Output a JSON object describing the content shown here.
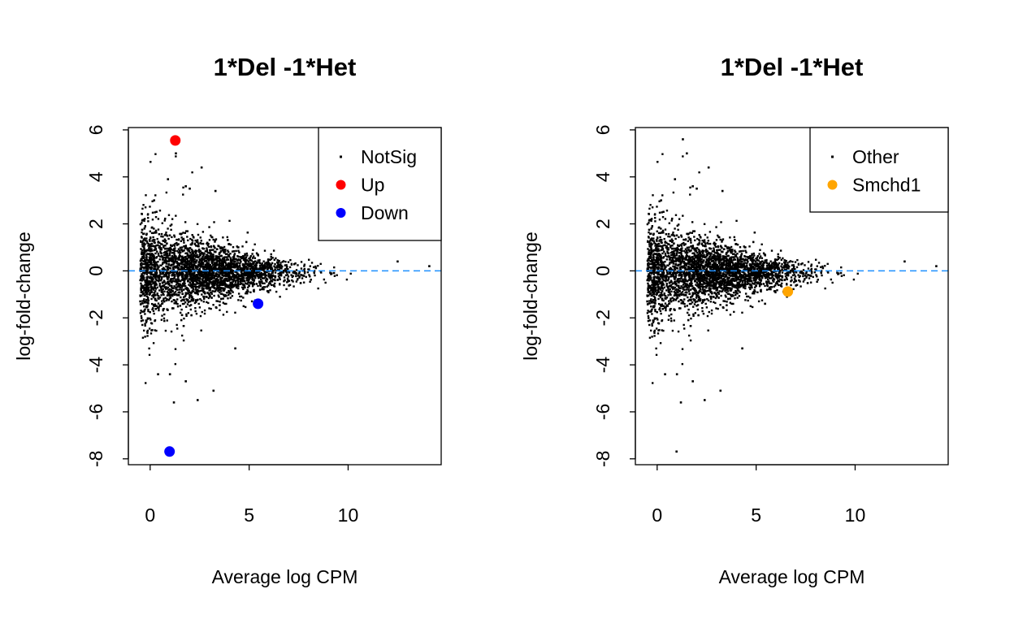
{
  "chart_data": [
    {
      "type": "scatter",
      "title": "1*Del -1*Het",
      "xlabel": "Average log CPM",
      "ylabel": "log-fold-change",
      "xlim": [
        -1.1,
        14.7
      ],
      "ylim": [
        -8.25,
        6.1
      ],
      "xticks": [
        "0",
        "5",
        "10"
      ],
      "xtick_values": [
        0,
        5,
        10
      ],
      "yticks": [
        "-8",
        "-6",
        "-4",
        "-2",
        "0",
        "2",
        "4",
        "6"
      ],
      "ytick_values": [
        -8,
        -6,
        -4,
        -2,
        0,
        2,
        4,
        6
      ],
      "hline": {
        "y": 0,
        "color": "#1e90ff",
        "style": "dashed"
      },
      "grid": false,
      "legend": {
        "placement": "top-right",
        "entries": [
          "NotSig",
          "Up",
          "Down"
        ]
      },
      "series": [
        {
          "name": "NotSig",
          "color": "#000000",
          "points": [
            [
              1.3,
              5.0
            ],
            [
              2.6,
              4.4
            ],
            [
              0.9,
              3.9
            ],
            [
              1.8,
              3.6
            ],
            [
              2.0,
              3.5
            ],
            [
              3.3,
              3.4
            ],
            [
              0.2,
              3.0
            ],
            [
              12.5,
              0.4
            ],
            [
              14.1,
              0.2
            ],
            [
              -0.5,
              -1.3
            ],
            [
              1.0,
              -4.4
            ],
            [
              0.4,
              -4.4
            ],
            [
              3.2,
              -5.1
            ],
            [
              1.2,
              -5.6
            ],
            [
              2.4,
              -5.5
            ],
            [
              1.8,
              -4.7
            ],
            [
              4.3,
              -3.3
            ]
          ]
        },
        {
          "name": "Up",
          "color": "#ff0000",
          "points": [
            [
              1.27,
              5.55
            ]
          ]
        },
        {
          "name": "Down",
          "color": "#0000ff",
          "points": [
            [
              0.98,
              -7.69
            ],
            [
              5.45,
              -1.4
            ]
          ]
        }
      ]
    },
    {
      "type": "scatter",
      "title": "1*Del -1*Het",
      "xlabel": "Average log CPM",
      "ylabel": "log-fold-change",
      "xlim": [
        -1.1,
        14.7
      ],
      "ylim": [
        -8.25,
        6.1
      ],
      "xticks": [
        "0",
        "5",
        "10"
      ],
      "xtick_values": [
        0,
        5,
        10
      ],
      "yticks": [
        "-8",
        "-6",
        "-4",
        "-2",
        "0",
        "2",
        "4",
        "6"
      ],
      "ytick_values": [
        -8,
        -6,
        -4,
        -2,
        0,
        2,
        4,
        6
      ],
      "hline": {
        "y": 0,
        "color": "#1e90ff",
        "style": "dashed"
      },
      "grid": false,
      "legend": {
        "placement": "top-right",
        "entries": [
          "Other",
          "Smchd1"
        ]
      },
      "series": [
        {
          "name": "Other",
          "color": "#000000",
          "points": [
            [
              1.3,
              5.6
            ],
            [
              1.5,
              5.0
            ],
            [
              2.6,
              4.4
            ],
            [
              0.9,
              3.9
            ],
            [
              1.8,
              3.6
            ],
            [
              2.0,
              3.5
            ],
            [
              3.3,
              3.4
            ],
            [
              0.2,
              3.0
            ],
            [
              12.5,
              0.4
            ],
            [
              14.1,
              0.2
            ],
            [
              -0.5,
              -1.3
            ],
            [
              1.0,
              -4.4
            ],
            [
              0.4,
              -4.4
            ],
            [
              3.2,
              -5.1
            ],
            [
              1.2,
              -5.6
            ],
            [
              2.4,
              -5.5
            ],
            [
              1.8,
              -4.7
            ],
            [
              4.3,
              -3.3
            ],
            [
              0.98,
              -7.69
            ],
            [
              5.45,
              -1.4
            ]
          ]
        },
        {
          "name": "Smchd1",
          "color": "#ffa500",
          "points": [
            [
              6.6,
              -0.88
            ]
          ]
        }
      ]
    }
  ]
}
